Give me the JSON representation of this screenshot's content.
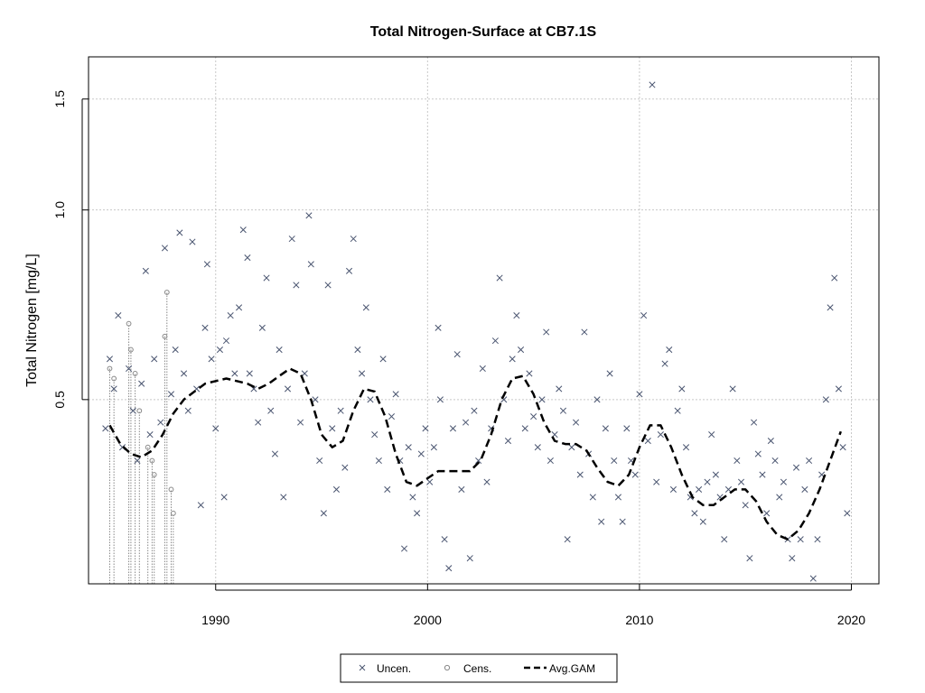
{
  "chart_data": {
    "type": "scatter",
    "title": "Total Nitrogen-Surface at CB7.1S",
    "xlabel": "",
    "ylabel": "Total Nitrogen [mg/L]",
    "log_y": true,
    "xlim": [
      1984,
      2021.3
    ],
    "ylim": [
      0.255,
      1.75
    ],
    "x_ticks": [
      1990,
      2000,
      2010,
      2020
    ],
    "x_tick_labels": [
      "1990",
      "2000",
      "2010",
      "2020"
    ],
    "y_ticks": [
      0.5,
      1.0,
      1.5
    ],
    "y_tick_labels": [
      "0.5",
      "1.0",
      "1.5"
    ],
    "grid": true,
    "legend_position": "bottom-center",
    "colors": {
      "uncensored": "#4a5570",
      "censored": "#888888",
      "gam": "#000000",
      "grid": "#c8c8c8"
    },
    "legend": [
      {
        "key": "uncen",
        "label": "Uncen."
      },
      {
        "key": "cens",
        "label": "Cens."
      },
      {
        "key": "gam",
        "label": "Avg.GAM"
      }
    ],
    "series": [
      {
        "name": "Uncen.",
        "marker": "x",
        "points": [
          [
            1984.8,
            0.45
          ],
          [
            1985.0,
            0.58
          ],
          [
            1985.2,
            0.52
          ],
          [
            1985.4,
            0.68
          ],
          [
            1985.6,
            0.42
          ],
          [
            1985.9,
            0.56
          ],
          [
            1986.1,
            0.48
          ],
          [
            1986.3,
            0.4
          ],
          [
            1986.5,
            0.53
          ],
          [
            1986.7,
            0.8
          ],
          [
            1986.9,
            0.44
          ],
          [
            1987.1,
            0.58
          ],
          [
            1987.4,
            0.46
          ],
          [
            1987.6,
            0.87
          ],
          [
            1987.9,
            0.51
          ],
          [
            1988.1,
            0.6
          ],
          [
            1988.3,
            0.92
          ],
          [
            1988.5,
            0.55
          ],
          [
            1988.7,
            0.48
          ],
          [
            1988.9,
            0.89
          ],
          [
            1989.1,
            0.52
          ],
          [
            1989.3,
            0.34
          ],
          [
            1989.5,
            0.65
          ],
          [
            1989.6,
            0.82
          ],
          [
            1989.8,
            0.58
          ],
          [
            1990.0,
            0.45
          ],
          [
            1990.2,
            0.6
          ],
          [
            1990.4,
            0.35
          ],
          [
            1990.5,
            0.62
          ],
          [
            1990.7,
            0.68
          ],
          [
            1990.9,
            0.55
          ],
          [
            1991.1,
            0.7
          ],
          [
            1991.3,
            0.93
          ],
          [
            1991.5,
            0.84
          ],
          [
            1991.6,
            0.55
          ],
          [
            1991.8,
            0.52
          ],
          [
            1992.0,
            0.46
          ],
          [
            1992.2,
            0.65
          ],
          [
            1992.4,
            0.78
          ],
          [
            1992.6,
            0.48
          ],
          [
            1992.8,
            0.41
          ],
          [
            1993.0,
            0.6
          ],
          [
            1993.2,
            0.35
          ],
          [
            1993.4,
            0.52
          ],
          [
            1993.6,
            0.9
          ],
          [
            1993.8,
            0.76
          ],
          [
            1994.0,
            0.46
          ],
          [
            1994.2,
            0.55
          ],
          [
            1994.4,
            0.98
          ],
          [
            1994.5,
            0.82
          ],
          [
            1994.7,
            0.5
          ],
          [
            1994.9,
            0.4
          ],
          [
            1995.1,
            0.33
          ],
          [
            1995.3,
            0.76
          ],
          [
            1995.5,
            0.45
          ],
          [
            1995.7,
            0.36
          ],
          [
            1995.9,
            0.48
          ],
          [
            1996.1,
            0.39
          ],
          [
            1996.3,
            0.8
          ],
          [
            1996.5,
            0.9
          ],
          [
            1996.7,
            0.6
          ],
          [
            1996.9,
            0.55
          ],
          [
            1997.1,
            0.7
          ],
          [
            1997.3,
            0.5
          ],
          [
            1997.5,
            0.44
          ],
          [
            1997.7,
            0.4
          ],
          [
            1997.9,
            0.58
          ],
          [
            1998.1,
            0.36
          ],
          [
            1998.3,
            0.47
          ],
          [
            1998.5,
            0.51
          ],
          [
            1998.7,
            0.4
          ],
          [
            1998.9,
            0.29
          ],
          [
            1999.1,
            0.42
          ],
          [
            1999.3,
            0.35
          ],
          [
            1999.5,
            0.33
          ],
          [
            1999.7,
            0.41
          ],
          [
            1999.9,
            0.45
          ],
          [
            2000.1,
            0.37
          ],
          [
            2000.3,
            0.42
          ],
          [
            2000.5,
            0.65
          ],
          [
            2000.6,
            0.5
          ],
          [
            2000.8,
            0.3
          ],
          [
            2001.0,
            0.27
          ],
          [
            2001.2,
            0.45
          ],
          [
            2001.4,
            0.59
          ],
          [
            2001.6,
            0.36
          ],
          [
            2001.8,
            0.46
          ],
          [
            2002.0,
            0.28
          ],
          [
            2002.2,
            0.48
          ],
          [
            2002.4,
            0.4
          ],
          [
            2002.6,
            0.56
          ],
          [
            2002.8,
            0.37
          ],
          [
            2003.0,
            0.45
          ],
          [
            2003.2,
            0.62
          ],
          [
            2003.4,
            0.78
          ],
          [
            2003.6,
            0.5
          ],
          [
            2003.8,
            0.43
          ],
          [
            2004.0,
            0.58
          ],
          [
            2004.2,
            0.68
          ],
          [
            2004.4,
            0.6
          ],
          [
            2004.6,
            0.45
          ],
          [
            2004.8,
            0.55
          ],
          [
            2005.0,
            0.47
          ],
          [
            2005.2,
            0.42
          ],
          [
            2005.4,
            0.5
          ],
          [
            2005.6,
            0.64
          ],
          [
            2005.8,
            0.4
          ],
          [
            2006.0,
            0.44
          ],
          [
            2006.2,
            0.52
          ],
          [
            2006.4,
            0.48
          ],
          [
            2006.6,
            0.3
          ],
          [
            2006.8,
            0.42
          ],
          [
            2007.0,
            0.46
          ],
          [
            2007.2,
            0.38
          ],
          [
            2007.4,
            0.64
          ],
          [
            2007.6,
            0.41
          ],
          [
            2007.8,
            0.35
          ],
          [
            2008.0,
            0.5
          ],
          [
            2008.2,
            0.32
          ],
          [
            2008.4,
            0.45
          ],
          [
            2008.6,
            0.55
          ],
          [
            2008.8,
            0.4
          ],
          [
            2009.0,
            0.35
          ],
          [
            2009.2,
            0.32
          ],
          [
            2009.4,
            0.45
          ],
          [
            2009.6,
            0.4
          ],
          [
            2009.8,
            0.38
          ],
          [
            2010.0,
            0.51
          ],
          [
            2010.2,
            0.68
          ],
          [
            2010.4,
            0.43
          ],
          [
            2010.6,
            1.58
          ],
          [
            2010.8,
            0.37
          ],
          [
            2011.0,
            0.44
          ],
          [
            2011.2,
            0.57
          ],
          [
            2011.4,
            0.6
          ],
          [
            2011.6,
            0.36
          ],
          [
            2011.8,
            0.48
          ],
          [
            2012.0,
            0.52
          ],
          [
            2012.2,
            0.42
          ],
          [
            2012.4,
            0.35
          ],
          [
            2012.6,
            0.33
          ],
          [
            2012.8,
            0.36
          ],
          [
            2013.0,
            0.32
          ],
          [
            2013.2,
            0.37
          ],
          [
            2013.4,
            0.44
          ],
          [
            2013.6,
            0.38
          ],
          [
            2013.8,
            0.35
          ],
          [
            2014.0,
            0.3
          ],
          [
            2014.2,
            0.36
          ],
          [
            2014.4,
            0.52
          ],
          [
            2014.6,
            0.4
          ],
          [
            2014.8,
            0.37
          ],
          [
            2015.0,
            0.34
          ],
          [
            2015.2,
            0.28
          ],
          [
            2015.4,
            0.46
          ],
          [
            2015.6,
            0.41
          ],
          [
            2015.8,
            0.38
          ],
          [
            2016.0,
            0.33
          ],
          [
            2016.2,
            0.43
          ],
          [
            2016.4,
            0.4
          ],
          [
            2016.6,
            0.35
          ],
          [
            2016.8,
            0.37
          ],
          [
            2017.0,
            0.3
          ],
          [
            2017.2,
            0.28
          ],
          [
            2017.4,
            0.39
          ],
          [
            2017.6,
            0.3
          ],
          [
            2017.8,
            0.36
          ],
          [
            2018.0,
            0.4
          ],
          [
            2018.2,
            0.26
          ],
          [
            2018.4,
            0.3
          ],
          [
            2018.6,
            0.38
          ],
          [
            2018.8,
            0.5
          ],
          [
            2019.0,
            0.7
          ],
          [
            2019.2,
            0.78
          ],
          [
            2019.4,
            0.52
          ],
          [
            2019.6,
            0.42
          ],
          [
            2019.8,
            0.33
          ]
        ]
      },
      {
        "name": "Cens.",
        "marker": "o",
        "points": [
          [
            1985.0,
            0.56
          ],
          [
            1985.2,
            0.54
          ],
          [
            1985.9,
            0.66
          ],
          [
            1986.0,
            0.6
          ],
          [
            1986.2,
            0.55
          ],
          [
            1986.4,
            0.48
          ],
          [
            1986.8,
            0.42
          ],
          [
            1987.0,
            0.4
          ],
          [
            1987.1,
            0.38
          ],
          [
            1987.6,
            0.63
          ],
          [
            1987.7,
            0.74
          ],
          [
            1987.9,
            0.36
          ],
          [
            1988.0,
            0.33
          ]
        ]
      },
      {
        "name": "Avg.GAM",
        "marker": "dashed-line",
        "points": [
          [
            1985.0,
            0.455
          ],
          [
            1985.5,
            0.425
          ],
          [
            1986.0,
            0.41
          ],
          [
            1986.5,
            0.405
          ],
          [
            1987.0,
            0.415
          ],
          [
            1987.5,
            0.44
          ],
          [
            1988.0,
            0.475
          ],
          [
            1988.5,
            0.5
          ],
          [
            1989.0,
            0.515
          ],
          [
            1989.5,
            0.53
          ],
          [
            1990.0,
            0.535
          ],
          [
            1990.5,
            0.54
          ],
          [
            1991.0,
            0.535
          ],
          [
            1991.5,
            0.53
          ],
          [
            1992.0,
            0.52
          ],
          [
            1992.5,
            0.53
          ],
          [
            1993.0,
            0.545
          ],
          [
            1993.5,
            0.56
          ],
          [
            1994.0,
            0.55
          ],
          [
            1994.5,
            0.5
          ],
          [
            1995.0,
            0.44
          ],
          [
            1995.5,
            0.42
          ],
          [
            1996.0,
            0.43
          ],
          [
            1996.5,
            0.48
          ],
          [
            1997.0,
            0.52
          ],
          [
            1997.5,
            0.515
          ],
          [
            1998.0,
            0.47
          ],
          [
            1998.5,
            0.41
          ],
          [
            1999.0,
            0.37
          ],
          [
            1999.5,
            0.365
          ],
          [
            2000.0,
            0.375
          ],
          [
            2000.5,
            0.385
          ],
          [
            2001.0,
            0.385
          ],
          [
            2001.5,
            0.385
          ],
          [
            2002.0,
            0.385
          ],
          [
            2002.5,
            0.4
          ],
          [
            2003.0,
            0.44
          ],
          [
            2003.5,
            0.5
          ],
          [
            2004.0,
            0.54
          ],
          [
            2004.5,
            0.545
          ],
          [
            2005.0,
            0.51
          ],
          [
            2005.5,
            0.46
          ],
          [
            2006.0,
            0.43
          ],
          [
            2006.5,
            0.425
          ],
          [
            2007.0,
            0.425
          ],
          [
            2007.5,
            0.415
          ],
          [
            2008.0,
            0.39
          ],
          [
            2008.5,
            0.37
          ],
          [
            2009.0,
            0.365
          ],
          [
            2009.5,
            0.38
          ],
          [
            2010.0,
            0.42
          ],
          [
            2010.5,
            0.455
          ],
          [
            2011.0,
            0.455
          ],
          [
            2011.5,
            0.42
          ],
          [
            2012.0,
            0.38
          ],
          [
            2012.5,
            0.35
          ],
          [
            2013.0,
            0.34
          ],
          [
            2013.5,
            0.34
          ],
          [
            2014.0,
            0.35
          ],
          [
            2014.5,
            0.36
          ],
          [
            2015.0,
            0.36
          ],
          [
            2015.5,
            0.345
          ],
          [
            2016.0,
            0.32
          ],
          [
            2016.5,
            0.305
          ],
          [
            2017.0,
            0.3
          ],
          [
            2017.5,
            0.31
          ],
          [
            2018.0,
            0.33
          ],
          [
            2018.5,
            0.36
          ],
          [
            2019.0,
            0.4
          ],
          [
            2019.5,
            0.445
          ]
        ]
      }
    ]
  }
}
